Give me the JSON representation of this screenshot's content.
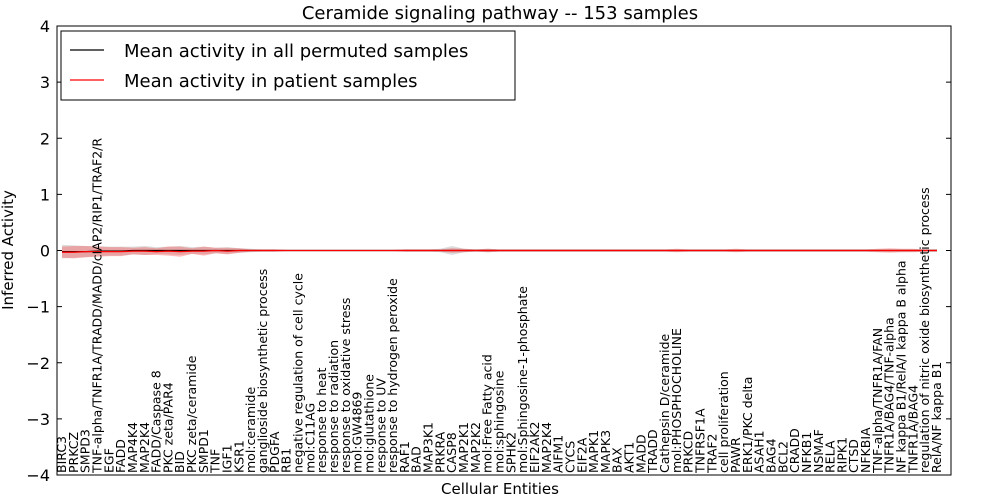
{
  "chart_data": {
    "type": "line",
    "title": "Ceramide signaling pathway -- 153 samples",
    "xlabel": "Cellular Entities",
    "ylabel": "Inferred Activity",
    "ylim": [
      -4,
      4
    ],
    "yticks": [
      -4,
      -3,
      -2,
      -1,
      0,
      1,
      2,
      3,
      4
    ],
    "ytick_labels": [
      "−4",
      "−3",
      "−2",
      "−1",
      "0",
      "1",
      "2",
      "3",
      "4"
    ],
    "legend_position": "top-left",
    "categories": [
      "BIRC3",
      "PRKCZ",
      "SMPD3",
      "TNF-alpha/TNFR1A/TRADD/MADD/cIAP2/RIP1/TRAF2/R",
      "EGF",
      "FADD",
      "MAP4K4",
      "MAP2K4",
      "FADD/Caspase 8",
      "PKC zeta/PAR4",
      "BID",
      "PKC zeta/ceramide",
      "SMPD1",
      "TNF",
      "IGF1",
      "KSR1",
      "mol:ceramide",
      "ganglioside biosynthetic process",
      "PDGFA",
      "RB1",
      "negative regulation of cell cycle",
      "mol:C11AG",
      "response to heat",
      "response to radiation",
      "response to oxidative stress",
      "mol:GW4869",
      "mol:glutathione",
      "response to UV",
      "response to hydrogen peroxide",
      "RAF1",
      "BAD",
      "MAP3K1",
      "PRKRA",
      "CASP8",
      "MAP2K1",
      "MAP2K2",
      "mol:Free Fatty acid",
      "mol:sphingosine",
      "SPHK2",
      "mol:Sphingosine-1-phosphate",
      "EIF2AK2",
      "MAP2K4",
      "AIFM1",
      "CYCS",
      "EIF2A",
      "MAPK1",
      "MAPK3",
      "BAX",
      "AKT1",
      "MADD",
      "TRADD",
      "Cathepsin D/ceramide",
      "mol:PHOSPHOCHOLINE",
      "PRKCD",
      "TNFRSF1A",
      "TRAF2",
      "cell proliferation",
      "PAWR",
      "ERK1/PKC delta",
      "ASAH1",
      "BAG4",
      "BCL2",
      "CRADD",
      "NFKB1",
      "NSMAF",
      "RELA",
      "RIPK1",
      "CTSD",
      "NFKBIA",
      "TNF-alpha/TNFR1A/FAN",
      "TNFR1A/BAG4/TNF-alpha",
      "NF kappa B1/RelA/I kappa B alpha",
      "TNFR1A/BAG4",
      "regulation of nitric oxide biosynthetic process",
      "RelA/NF kappa B1"
    ],
    "series": [
      {
        "name": "Mean activity in all permuted samples",
        "color": "#000000",
        "values": [
          -0.02,
          -0.02,
          -0.02,
          -0.01,
          -0.01,
          -0.01,
          0,
          0,
          0,
          0,
          0,
          0,
          0,
          0,
          0,
          0,
          0,
          0,
          0,
          0,
          0,
          0,
          0,
          0,
          0,
          0,
          0,
          0,
          0,
          0,
          0,
          0,
          0,
          0,
          0,
          0,
          0,
          0,
          0,
          0,
          0,
          0,
          0,
          0,
          0,
          0,
          0,
          0,
          0,
          0,
          0,
          0,
          0,
          0,
          0,
          0,
          0,
          0,
          0,
          0,
          0,
          0,
          0,
          0,
          0,
          0,
          0,
          0,
          0,
          0,
          0,
          0,
          0,
          0,
          0
        ],
        "band": [
          0.12,
          0.11,
          0.1,
          0.09,
          0.08,
          0.08,
          0.07,
          0.08,
          0.06,
          0.07,
          0.08,
          0.06,
          0.07,
          0.05,
          0.06,
          0.04,
          0.03,
          0.02,
          0.02,
          0.01,
          0.01,
          0.01,
          0.01,
          0.01,
          0.01,
          0.01,
          0.01,
          0.01,
          0.01,
          0.02,
          0.02,
          0.02,
          0.03,
          0.08,
          0.03,
          0.02,
          0.03,
          0.02,
          0.02,
          0.02,
          0.02,
          0.02,
          0.02,
          0.02,
          0.02,
          0.02,
          0.02,
          0.02,
          0.02,
          0.02,
          0.02,
          0.02,
          0.02,
          0.02,
          0.02,
          0.02,
          0.02,
          0.02,
          0.02,
          0.02,
          0.02,
          0.02,
          0.02,
          0.02,
          0.02,
          0.02,
          0.02,
          0.02,
          0.02,
          0.02,
          0.02,
          0.02,
          0.02,
          0.02,
          0.02
        ]
      },
      {
        "name": "Mean activity in patient samples",
        "color": "#ff0000",
        "values": [
          -0.03,
          -0.03,
          -0.02,
          -0.02,
          -0.02,
          -0.02,
          -0.01,
          -0.01,
          -0.02,
          -0.01,
          -0.02,
          -0.01,
          -0.01,
          0,
          -0.01,
          0,
          0,
          0,
          0,
          0,
          0,
          0,
          0,
          0,
          0,
          0,
          0,
          0,
          0,
          0,
          0,
          0,
          0,
          0,
          0,
          0,
          0,
          0,
          0,
          0,
          0,
          0,
          0,
          0,
          0,
          0,
          0,
          0,
          0,
          0,
          0,
          0,
          0,
          0,
          0,
          0,
          0,
          0,
          0,
          0,
          0,
          0,
          0,
          0,
          0,
          0,
          0,
          0,
          0,
          0,
          0,
          0,
          0,
          0,
          0
        ],
        "band": [
          0.1,
          0.11,
          0.1,
          0.09,
          0.08,
          0.08,
          0.06,
          0.07,
          0.06,
          0.08,
          0.09,
          0.05,
          0.08,
          0.05,
          0.06,
          0.04,
          0.02,
          0.02,
          0.02,
          0.01,
          0.01,
          0.01,
          0.01,
          0.01,
          0.01,
          0.01,
          0.01,
          0.01,
          0.01,
          0.02,
          0.02,
          0.02,
          0.02,
          0.04,
          0.03,
          0.02,
          0.03,
          0.02,
          0.02,
          0.02,
          0.02,
          0.02,
          0.02,
          0.02,
          0.02,
          0.02,
          0.02,
          0.02,
          0.02,
          0.02,
          0.02,
          0.02,
          0.03,
          0.02,
          0.02,
          0.02,
          0.02,
          0.03,
          0.02,
          0.02,
          0.02,
          0.02,
          0.02,
          0.02,
          0.02,
          0.02,
          0.02,
          0.02,
          0.02,
          0.03,
          0.04,
          0.03,
          0.03,
          0.02,
          0.02
        ]
      }
    ]
  }
}
